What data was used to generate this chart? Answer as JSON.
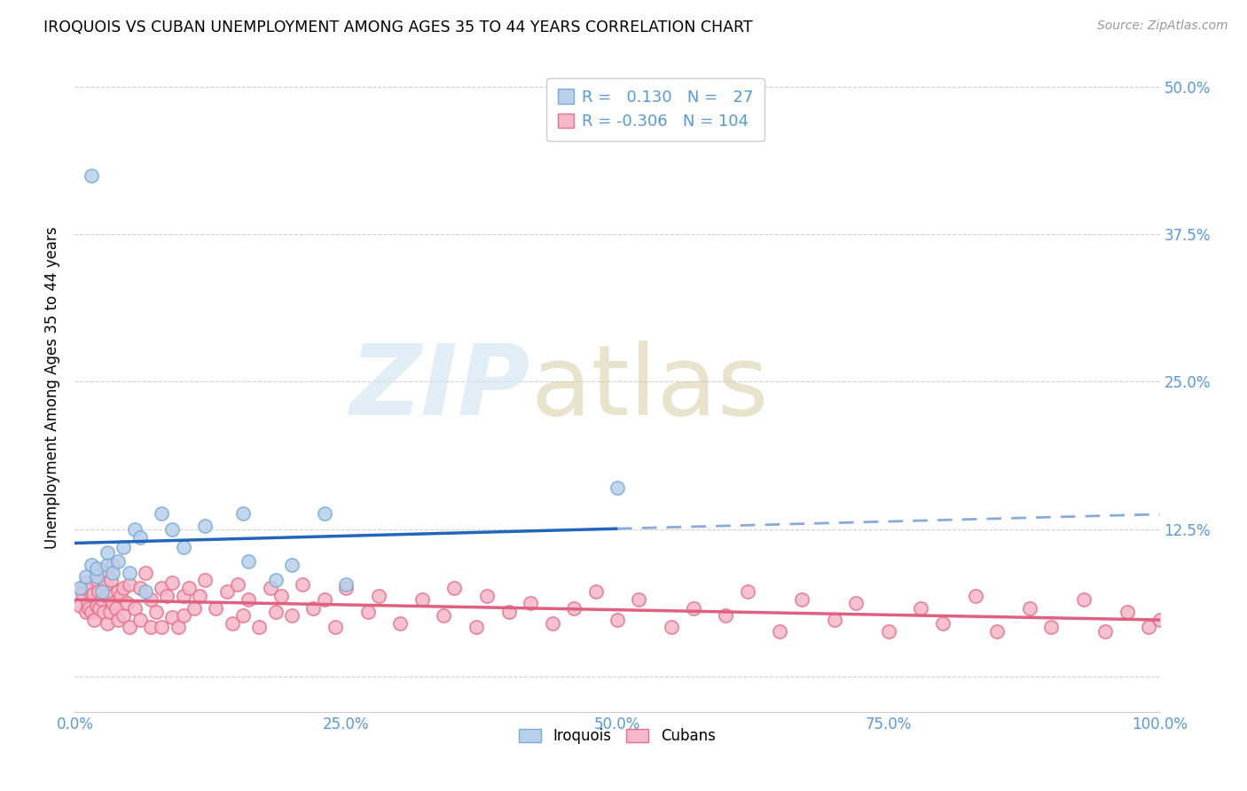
{
  "title": "IROQUOIS VS CUBAN UNEMPLOYMENT AMONG AGES 35 TO 44 YEARS CORRELATION CHART",
  "source": "Source: ZipAtlas.com",
  "ylabel": "Unemployment Among Ages 35 to 44 years",
  "xlim": [
    0.0,
    1.0
  ],
  "ylim": [
    -0.03,
    0.52
  ],
  "xticks": [
    0.0,
    0.25,
    0.5,
    0.75,
    1.0
  ],
  "xticklabels": [
    "0.0%",
    "25.0%",
    "50.0%",
    "75.0%",
    "100.0%"
  ],
  "yticks": [
    0.0,
    0.125,
    0.25,
    0.375,
    0.5
  ],
  "yticklabels": [
    "",
    "12.5%",
    "25.0%",
    "37.5%",
    "50.0%"
  ],
  "iroquois_color_fill": "#b8d0ea",
  "iroquois_color_edge": "#7aadd4",
  "cubans_color_fill": "#f5b8c8",
  "cubans_color_edge": "#e87090",
  "iroquois_line_color": "#2266bb",
  "iroquois_line_dash_color": "#88aadd",
  "cubans_line_color": "#e06080",
  "iroquois_R": 0.13,
  "iroquois_N": 27,
  "cubans_R": -0.306,
  "cubans_N": 104,
  "legend_label_1": "Iroquois",
  "legend_label_2": "Cubans",
  "iroquois_x": [
    0.005,
    0.01,
    0.015,
    0.02,
    0.02,
    0.025,
    0.03,
    0.03,
    0.035,
    0.04,
    0.045,
    0.05,
    0.055,
    0.06,
    0.065,
    0.08,
    0.09,
    0.1,
    0.12,
    0.155,
    0.16,
    0.185,
    0.2,
    0.23,
    0.25,
    0.5,
    0.015
  ],
  "iroquois_y": [
    0.075,
    0.085,
    0.095,
    0.085,
    0.092,
    0.072,
    0.095,
    0.105,
    0.088,
    0.098,
    0.11,
    0.088,
    0.125,
    0.118,
    0.072,
    0.138,
    0.125,
    0.11,
    0.128,
    0.138,
    0.098,
    0.082,
    0.095,
    0.138,
    0.078,
    0.16,
    0.425
  ],
  "cubans_x": [
    0.005,
    0.007,
    0.008,
    0.01,
    0.01,
    0.012,
    0.013,
    0.015,
    0.015,
    0.017,
    0.018,
    0.02,
    0.02,
    0.022,
    0.023,
    0.025,
    0.025,
    0.027,
    0.028,
    0.03,
    0.03,
    0.032,
    0.033,
    0.035,
    0.035,
    0.038,
    0.04,
    0.04,
    0.042,
    0.045,
    0.045,
    0.048,
    0.05,
    0.05,
    0.055,
    0.06,
    0.06,
    0.065,
    0.07,
    0.07,
    0.075,
    0.08,
    0.08,
    0.085,
    0.09,
    0.09,
    0.095,
    0.1,
    0.1,
    0.105,
    0.11,
    0.115,
    0.12,
    0.13,
    0.14,
    0.145,
    0.15,
    0.155,
    0.16,
    0.17,
    0.18,
    0.185,
    0.19,
    0.2,
    0.21,
    0.22,
    0.23,
    0.24,
    0.25,
    0.27,
    0.28,
    0.3,
    0.32,
    0.34,
    0.35,
    0.37,
    0.38,
    0.4,
    0.42,
    0.44,
    0.46,
    0.48,
    0.5,
    0.52,
    0.55,
    0.57,
    0.6,
    0.62,
    0.65,
    0.67,
    0.7,
    0.72,
    0.75,
    0.78,
    0.8,
    0.83,
    0.85,
    0.88,
    0.9,
    0.93,
    0.95,
    0.97,
    0.99,
    1.0
  ],
  "cubans_y": [
    0.06,
    0.07,
    0.075,
    0.055,
    0.08,
    0.062,
    0.058,
    0.055,
    0.075,
    0.07,
    0.048,
    0.06,
    0.082,
    0.072,
    0.058,
    0.065,
    0.09,
    0.055,
    0.078,
    0.045,
    0.068,
    0.055,
    0.082,
    0.062,
    0.095,
    0.058,
    0.072,
    0.048,
    0.068,
    0.075,
    0.052,
    0.062,
    0.042,
    0.078,
    0.058,
    0.075,
    0.048,
    0.088,
    0.042,
    0.065,
    0.055,
    0.075,
    0.042,
    0.068,
    0.05,
    0.08,
    0.042,
    0.068,
    0.052,
    0.075,
    0.058,
    0.068,
    0.082,
    0.058,
    0.072,
    0.045,
    0.078,
    0.052,
    0.065,
    0.042,
    0.075,
    0.055,
    0.068,
    0.052,
    0.078,
    0.058,
    0.065,
    0.042,
    0.075,
    0.055,
    0.068,
    0.045,
    0.065,
    0.052,
    0.075,
    0.042,
    0.068,
    0.055,
    0.062,
    0.045,
    0.058,
    0.072,
    0.048,
    0.065,
    0.042,
    0.058,
    0.052,
    0.072,
    0.038,
    0.065,
    0.048,
    0.062,
    0.038,
    0.058,
    0.045,
    0.068,
    0.038,
    0.058,
    0.042,
    0.065,
    0.038,
    0.055,
    0.042,
    0.048
  ],
  "background_color": "#ffffff",
  "grid_color": "#cccccc",
  "tick_color": "#5599dd"
}
